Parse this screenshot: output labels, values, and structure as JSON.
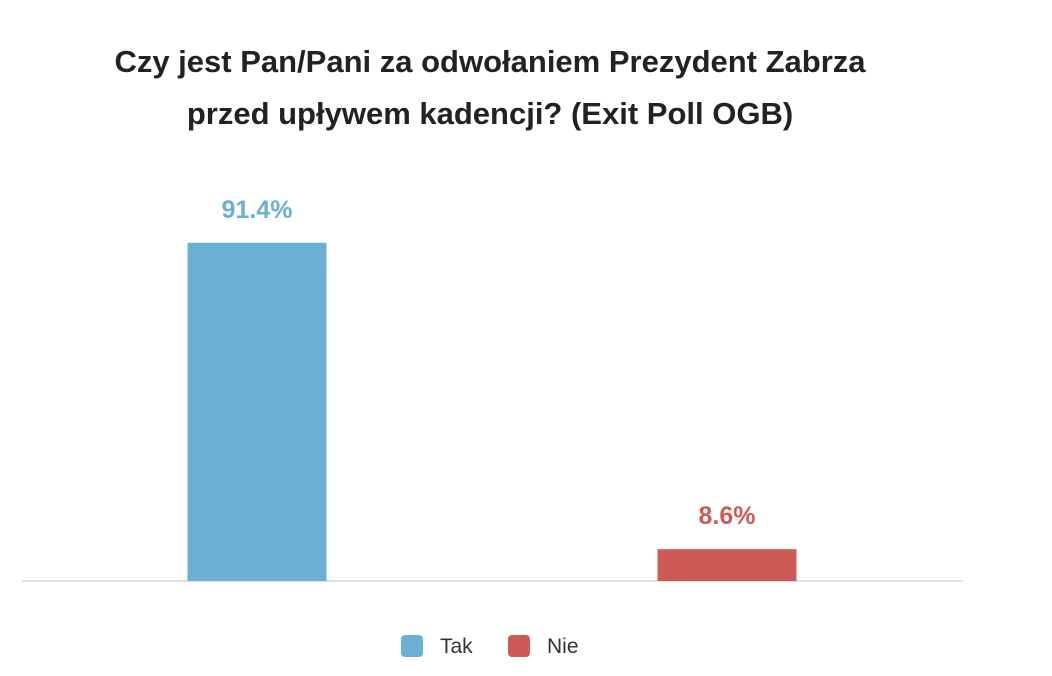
{
  "chart_data": {
    "type": "bar",
    "title_lines": [
      "Czy jest Pan/Pani za odwołaniem Prezydent Zabrza",
      "przed upływem kadencji? (Exit Poll OGB)"
    ],
    "categories": [
      "Tak",
      "Nie"
    ],
    "values": [
      91.4,
      8.6
    ],
    "value_labels": [
      "91.4%",
      "8.6%"
    ],
    "colors": [
      "#6aafd4",
      "#cd5a54"
    ],
    "legend": [
      "Tak",
      "Nie"
    ],
    "legend_position": "bottom",
    "ylim": [
      0,
      100
    ],
    "grid": false
  }
}
